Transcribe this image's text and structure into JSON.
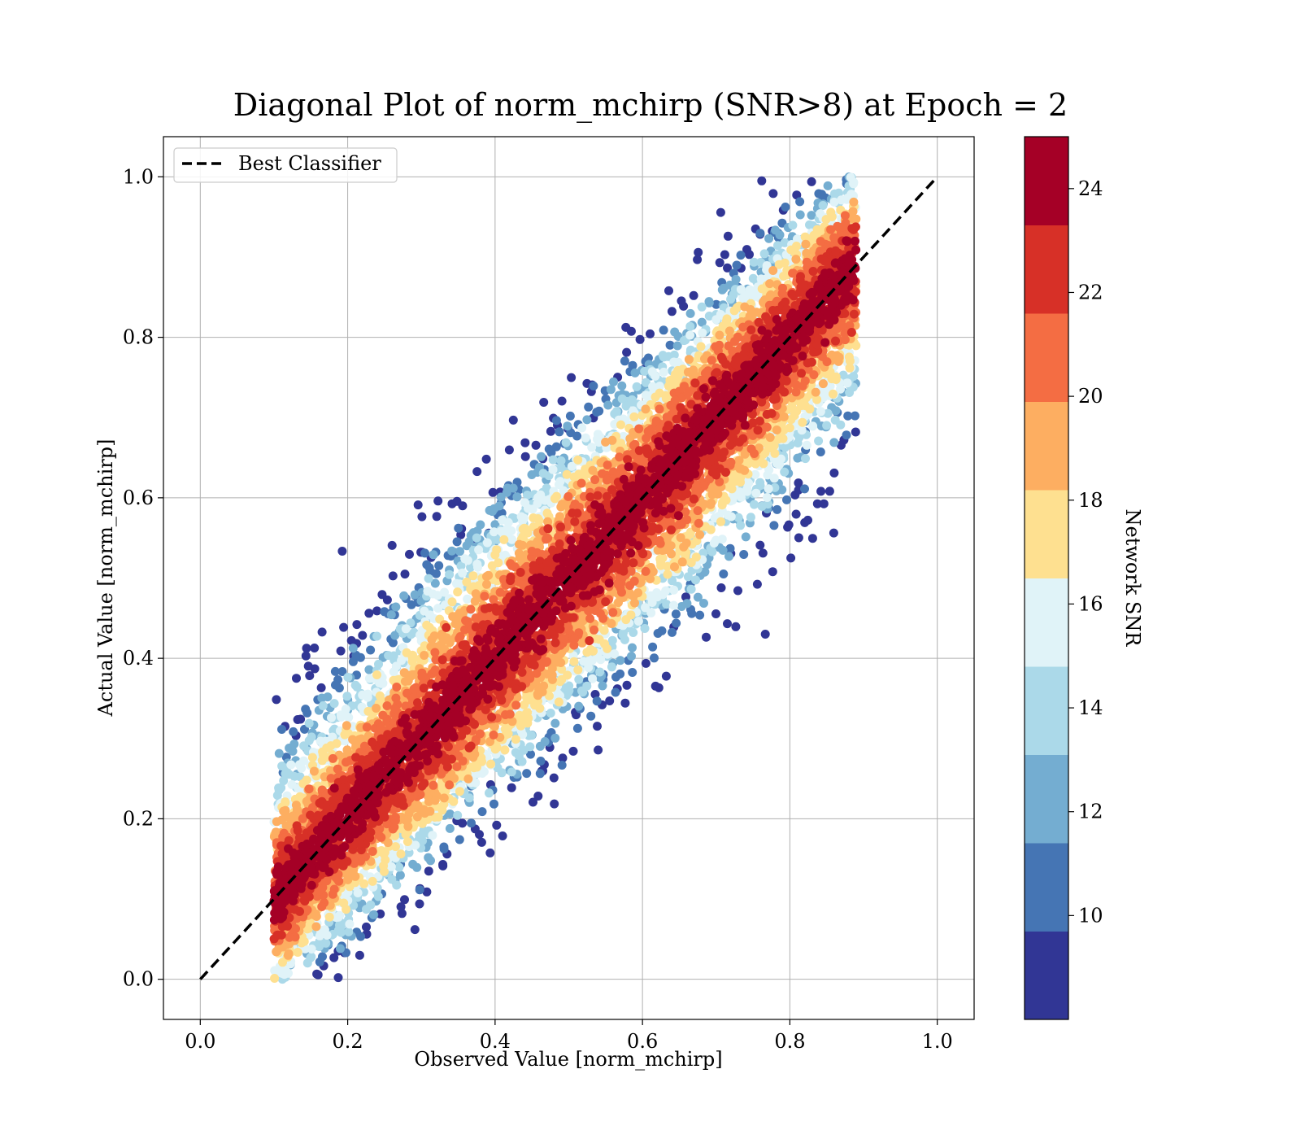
{
  "chart_data": {
    "type": "scatter",
    "title": "Diagonal Plot of norm_mchirp (SNR>8) at Epoch = 2",
    "xlabel": "Observed Value [norm_mchirp]",
    "ylabel": "Actual Value [norm_mchirp]",
    "xlim": [
      -0.05,
      1.05
    ],
    "ylim": [
      -0.05,
      1.05
    ],
    "x_ticks": [
      0.0,
      0.2,
      0.4,
      0.6,
      0.8,
      1.0
    ],
    "y_ticks": [
      0.0,
      0.2,
      0.4,
      0.6,
      0.8,
      1.0
    ],
    "x_tick_labels": [
      "0.0",
      "0.2",
      "0.4",
      "0.6",
      "0.8",
      "1.0"
    ],
    "y_tick_labels": [
      "0.0",
      "0.2",
      "0.4",
      "0.6",
      "0.8",
      "1.0"
    ],
    "grid": true,
    "legend": {
      "position": "top-left",
      "entries": [
        {
          "label": "Best Classifier",
          "style": "dashed",
          "color": "#000000"
        }
      ]
    },
    "reference_line": {
      "x": [
        0.0,
        1.0
      ],
      "y": [
        0.0,
        1.0
      ],
      "style": "dashed",
      "color": "#000000"
    },
    "colorbar": {
      "label": "Network SNR",
      "range": [
        8,
        25
      ],
      "ticks": [
        10,
        12,
        14,
        16,
        18,
        20,
        22,
        24
      ],
      "tick_labels": [
        "10",
        "12",
        "14",
        "16",
        "18",
        "20",
        "22",
        "24"
      ],
      "colors": [
        "#313695",
        "#4575b4",
        "#74add1",
        "#abd9e9",
        "#e0f3f8",
        "#fee090",
        "#fdae61",
        "#f46d43",
        "#d73027",
        "#a50026"
      ]
    },
    "point_cloud": {
      "description_free_summary": "dense scatter following y≈x with SNR color",
      "x_range": [
        0.1,
        0.89
      ],
      "y_range": [
        0.0,
        1.0
      ],
      "point_count_estimate": 12000,
      "mean_offset": [
        {
          "x": 0.2,
          "spread": 0.11
        },
        {
          "x": 0.4,
          "spread": 0.18
        },
        {
          "x": 0.6,
          "spread": 0.2
        },
        {
          "x": 0.8,
          "spread": 0.12
        }
      ]
    }
  }
}
